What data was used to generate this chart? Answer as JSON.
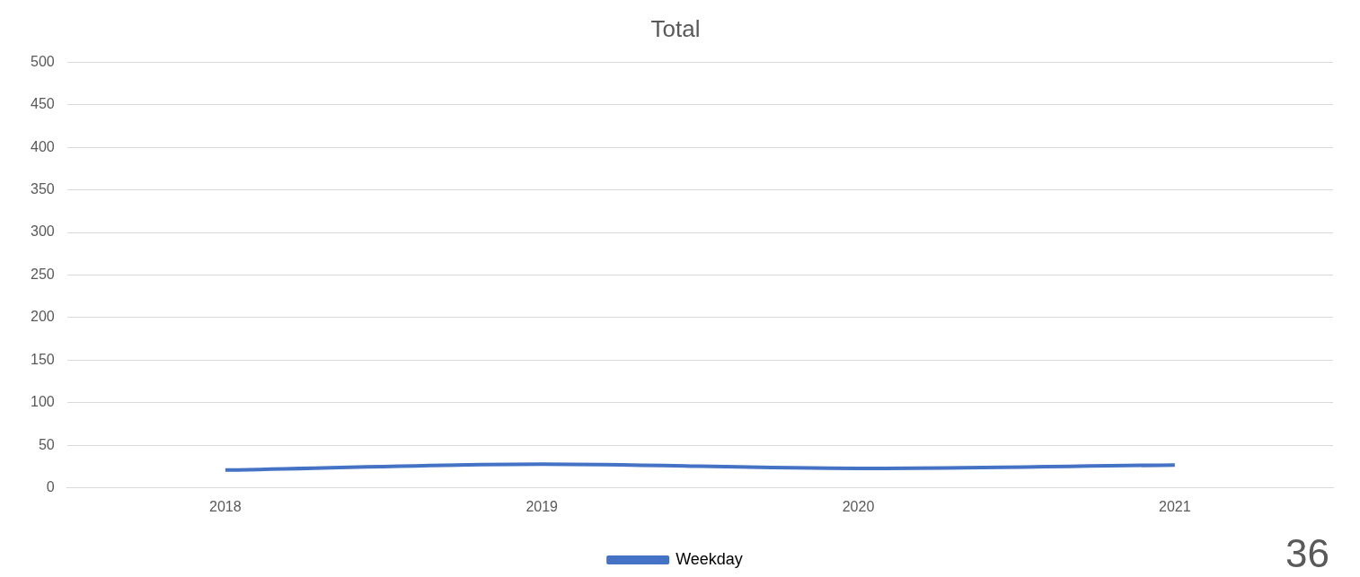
{
  "chart_data": {
    "type": "line",
    "title": "Total",
    "categories": [
      "2018",
      "2019",
      "2020",
      "2021"
    ],
    "series": [
      {
        "name": "Weekday",
        "color": "#4472c4",
        "values": [
          21,
          28,
          23,
          27
        ]
      }
    ],
    "ylim": [
      0,
      500
    ],
    "yticks": [
      0,
      50,
      100,
      150,
      200,
      250,
      300,
      350,
      400,
      450,
      500
    ],
    "grid": "y",
    "legend": "bottom",
    "marker": "none",
    "annotations": [
      "36"
    ]
  }
}
